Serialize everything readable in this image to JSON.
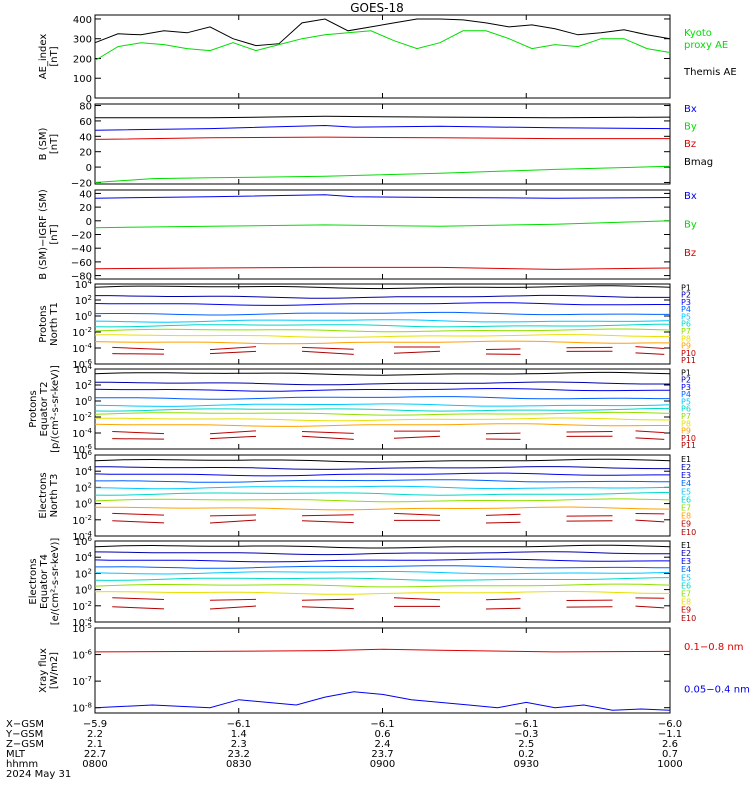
{
  "title": "GOES-18",
  "colors": {
    "black": "#000000",
    "blue": "#0000ee",
    "green": "#00dd00",
    "red": "#dd0000",
    "navy": "#0000aa",
    "mid_blue": "#0060ff",
    "cyan": "#00c8ff",
    "teal": "#00d8c8",
    "lime": "#90e000",
    "yellow": "#e8e000",
    "orange": "#ffa000",
    "dark_orange": "#f06000",
    "brick": "#c00000",
    "dark_red": "#b00000"
  },
  "chart_data": [
    {
      "type": "line",
      "ylabel": "AE_index\n[nT]",
      "ylim": [
        0,
        420
      ],
      "scale": "linear",
      "yticks": [
        {
          "v": 0,
          "t": "0"
        },
        {
          "v": 100,
          "t": "100"
        },
        {
          "v": 200,
          "t": "200"
        },
        {
          "v": 300,
          "t": "300"
        },
        {
          "v": 400,
          "t": "400"
        }
      ],
      "legend": [
        {
          "label": "Kyoto\nproxy AE",
          "color": "green",
          "frac": 0.25
        },
        {
          "label": "Themis AE",
          "color": "black",
          "frac": 0.72
        }
      ],
      "series": [
        {
          "name": "Themis AE",
          "color": "black",
          "x": [
            0,
            0.04,
            0.08,
            0.12,
            0.16,
            0.2,
            0.24,
            0.28,
            0.32,
            0.36,
            0.4,
            0.44,
            0.48,
            0.52,
            0.56,
            0.6,
            0.64,
            0.68,
            0.72,
            0.76,
            0.8,
            0.84,
            0.88,
            0.92,
            0.96,
            1.0
          ],
          "y": [
            280,
            325,
            320,
            340,
            330,
            360,
            300,
            265,
            275,
            380,
            400,
            340,
            360,
            380,
            400,
            400,
            395,
            380,
            360,
            370,
            350,
            320,
            330,
            345,
            320,
            300
          ]
        },
        {
          "name": "Kyoto proxy AE",
          "color": "green",
          "x": [
            0,
            0.04,
            0.08,
            0.12,
            0.16,
            0.2,
            0.24,
            0.28,
            0.32,
            0.36,
            0.4,
            0.44,
            0.48,
            0.52,
            0.56,
            0.6,
            0.64,
            0.68,
            0.72,
            0.76,
            0.8,
            0.84,
            0.88,
            0.92,
            0.96,
            1.0
          ],
          "y": [
            190,
            260,
            280,
            270,
            250,
            240,
            280,
            240,
            270,
            300,
            320,
            330,
            340,
            290,
            250,
            280,
            340,
            340,
            300,
            250,
            270,
            260,
            300,
            300,
            250,
            230
          ]
        }
      ]
    },
    {
      "type": "line",
      "ylabel": "B (SM)\n[nT]",
      "ylim": [
        -22,
        82
      ],
      "scale": "linear",
      "yticks": [
        {
          "v": -20,
          "t": "−20"
        },
        {
          "v": 0,
          "t": "0"
        },
        {
          "v": 20,
          "t": "20"
        },
        {
          "v": 40,
          "t": "40"
        },
        {
          "v": 60,
          "t": "60"
        },
        {
          "v": 80,
          "t": "80"
        }
      ],
      "legend": [
        {
          "label": "Bx",
          "color": "blue",
          "frac": 0.1
        },
        {
          "label": "By",
          "color": "green",
          "frac": 0.32
        },
        {
          "label": "Bz",
          "color": "red",
          "frac": 0.54
        },
        {
          "label": "Bmag",
          "color": "black",
          "frac": 0.76
        }
      ],
      "series": [
        {
          "name": "Bmag",
          "color": "black",
          "x": [
            0,
            0.2,
            0.4,
            0.6,
            0.8,
            1.0
          ],
          "y": [
            64,
            64,
            66,
            65,
            64,
            65
          ]
        },
        {
          "name": "Bx",
          "color": "blue",
          "x": [
            0,
            0.2,
            0.4,
            0.45,
            0.6,
            0.8,
            1.0
          ],
          "y": [
            48,
            50,
            54,
            52,
            53,
            51,
            50
          ]
        },
        {
          "name": "Bz",
          "color": "red",
          "x": [
            0,
            0.2,
            0.4,
            0.6,
            0.8,
            1.0
          ],
          "y": [
            36,
            38,
            39,
            38,
            37,
            37
          ]
        },
        {
          "name": "By",
          "color": "green",
          "x": [
            0,
            0.1,
            0.2,
            0.4,
            0.6,
            0.8,
            1.0
          ],
          "y": [
            -20,
            -15,
            -14,
            -12,
            -8,
            -3,
            1
          ]
        }
      ]
    },
    {
      "type": "line",
      "ylabel": "B (SM)−IGRF (SM)\n[nT]",
      "ylim": [
        -85,
        45
      ],
      "scale": "linear",
      "yticks": [
        {
          "v": -80,
          "t": "−80"
        },
        {
          "v": -60,
          "t": "−60"
        },
        {
          "v": -40,
          "t": "−40"
        },
        {
          "v": -20,
          "t": "−20"
        },
        {
          "v": 0,
          "t": "0"
        },
        {
          "v": 20,
          "t": "20"
        },
        {
          "v": 40,
          "t": "40"
        }
      ],
      "legend": [
        {
          "label": "Bx",
          "color": "blue",
          "frac": 0.1
        },
        {
          "label": "By",
          "color": "green",
          "frac": 0.42
        },
        {
          "label": "Bz",
          "color": "red",
          "frac": 0.74
        }
      ],
      "series": [
        {
          "name": "Bx",
          "color": "blue",
          "x": [
            0,
            0.2,
            0.4,
            0.45,
            0.6,
            0.8,
            1.0
          ],
          "y": [
            33,
            35,
            38,
            35,
            34,
            33,
            34
          ]
        },
        {
          "name": "By",
          "color": "green",
          "x": [
            0,
            0.2,
            0.4,
            0.6,
            0.8,
            1.0
          ],
          "y": [
            -10,
            -8,
            -6,
            -8,
            -5,
            0
          ]
        },
        {
          "name": "Bz",
          "color": "red",
          "x": [
            0,
            0.2,
            0.4,
            0.6,
            0.8,
            1.0
          ],
          "y": [
            -70,
            -69,
            -68,
            -68,
            -71,
            -69
          ]
        }
      ]
    },
    {
      "type": "line",
      "ylabel": "Protons\nNorth T1",
      "ylim": [
        -6,
        4
      ],
      "scale": "log10",
      "yticks": [
        {
          "v": 4,
          "t": "10^4"
        },
        {
          "v": 2,
          "t": "10^2"
        },
        {
          "v": 0,
          "t": "10^0"
        },
        {
          "v": -2,
          "t": "10^-2"
        },
        {
          "v": -4,
          "t": "10^-4"
        },
        {
          "v": -6,
          "t": "10^-6"
        }
      ],
      "legend_small": [
        {
          "label": "P1",
          "color": "black"
        },
        {
          "label": "P2",
          "color": "navy"
        },
        {
          "label": "P3",
          "color": "blue"
        },
        {
          "label": "P4",
          "color": "mid_blue"
        },
        {
          "label": "P5",
          "color": "cyan"
        },
        {
          "label": "P6",
          "color": "teal"
        },
        {
          "label": "P7",
          "color": "lime"
        },
        {
          "label": "P8",
          "color": "yellow"
        },
        {
          "label": "P9",
          "color": "orange"
        },
        {
          "label": "P10",
          "color": "brick"
        },
        {
          "label": "P11",
          "color": "dark_red"
        }
      ],
      "levels": [
        3.6,
        2.4,
        1.5,
        0.3,
        -0.6,
        -1.2,
        -1.8,
        -2.5,
        -3.3,
        -4.0,
        -4.6
      ],
      "gaps": [
        9,
        10
      ]
    },
    {
      "type": "line",
      "ylabel": "Protons\nEquator T2\n[p/(cm²-s-sr-keV)]",
      "ylim": [
        -6,
        4
      ],
      "scale": "log10",
      "yticks": [
        {
          "v": 4,
          "t": "10^4"
        },
        {
          "v": 2,
          "t": "10^2"
        },
        {
          "v": 0,
          "t": "10^0"
        },
        {
          "v": -2,
          "t": "10^-2"
        },
        {
          "v": -4,
          "t": "10^-4"
        },
        {
          "v": -6,
          "t": "10^-6"
        }
      ],
      "legend_small": [
        {
          "label": "P1",
          "color": "black"
        },
        {
          "label": "P2",
          "color": "navy"
        },
        {
          "label": "P3",
          "color": "blue"
        },
        {
          "label": "P4",
          "color": "mid_blue"
        },
        {
          "label": "P5",
          "color": "cyan"
        },
        {
          "label": "P6",
          "color": "teal"
        },
        {
          "label": "P7",
          "color": "lime"
        },
        {
          "label": "P8",
          "color": "yellow"
        },
        {
          "label": "P9",
          "color": "orange"
        },
        {
          "label": "P10",
          "color": "brick"
        },
        {
          "label": "P11",
          "color": "dark_red"
        }
      ],
      "levels": [
        3.4,
        2.2,
        1.4,
        0.4,
        -0.5,
        -1.1,
        -1.6,
        -2.3,
        -3.0,
        -3.9,
        -4.6
      ],
      "gaps": [
        9,
        10
      ]
    },
    {
      "type": "line",
      "ylabel": "Electrons\nNorth T3",
      "ylim": [
        -4,
        6
      ],
      "scale": "log10",
      "yticks": [
        {
          "v": 6,
          "t": "10^6"
        },
        {
          "v": 4,
          "t": "10^4"
        },
        {
          "v": 2,
          "t": "10^2"
        },
        {
          "v": 0,
          "t": "10^0"
        },
        {
          "v": -2,
          "t": "10^-2"
        },
        {
          "v": -4,
          "t": "10^-4"
        }
      ],
      "legend_small": [
        {
          "label": "E1",
          "color": "black"
        },
        {
          "label": "E2",
          "color": "navy"
        },
        {
          "label": "E3",
          "color": "blue"
        },
        {
          "label": "E4",
          "color": "mid_blue"
        },
        {
          "label": "E5",
          "color": "cyan"
        },
        {
          "label": "E6",
          "color": "teal"
        },
        {
          "label": "E7",
          "color": "lime"
        },
        {
          "label": "E8",
          "color": "orange"
        },
        {
          "label": "E9",
          "color": "brick"
        },
        {
          "label": "E10",
          "color": "dark_red"
        }
      ],
      "levels": [
        5.3,
        4.4,
        3.6,
        2.8,
        2.0,
        1.2,
        0.4,
        -0.6,
        -1.4,
        -2.2
      ],
      "gaps": [
        8,
        9
      ]
    },
    {
      "type": "line",
      "ylabel": "Electrons\nEquator T4\n[e/(cm²-s-sr-keV)]",
      "ylim": [
        -4,
        6
      ],
      "scale": "log10",
      "yticks": [
        {
          "v": 6,
          "t": "10^6"
        },
        {
          "v": 4,
          "t": "10^4"
        },
        {
          "v": 2,
          "t": "10^2"
        },
        {
          "v": 0,
          "t": "10^0"
        },
        {
          "v": -2,
          "t": "10^-2"
        },
        {
          "v": -4,
          "t": "10^-4"
        }
      ],
      "legend_small": [
        {
          "label": "E1",
          "color": "black"
        },
        {
          "label": "E2",
          "color": "navy"
        },
        {
          "label": "E3",
          "color": "blue"
        },
        {
          "label": "E4",
          "color": "mid_blue"
        },
        {
          "label": "E5",
          "color": "cyan"
        },
        {
          "label": "E6",
          "color": "teal"
        },
        {
          "label": "E7",
          "color": "lime"
        },
        {
          "label": "E8",
          "color": "yellow"
        },
        {
          "label": "E9",
          "color": "brick"
        },
        {
          "label": "E10",
          "color": "dark_red"
        }
      ],
      "levels": [
        5.3,
        4.5,
        3.6,
        2.8,
        2.1,
        1.3,
        0.5,
        -0.4,
        -1.2,
        -2.2
      ],
      "gaps": [
        8,
        9
      ]
    },
    {
      "type": "line",
      "ylabel": "Xray flux\n[W/m2]",
      "ylim": [
        -8.2,
        -5.0
      ],
      "scale": "log10",
      "yticks": [
        {
          "v": -5,
          "t": "10^-5"
        },
        {
          "v": -6,
          "t": "10^-6"
        },
        {
          "v": -7,
          "t": "10^-7"
        },
        {
          "v": -8,
          "t": "10^-8"
        }
      ],
      "legend": [
        {
          "label": "0.1−0.8 nm",
          "color": "red",
          "frac": 0.26
        },
        {
          "label": "0.05−0.4 nm",
          "color": "blue",
          "frac": 0.76
        }
      ],
      "series": [
        {
          "name": "0.1−0.8 nm",
          "color": "red",
          "x": [
            0,
            0.2,
            0.4,
            0.5,
            0.6,
            0.8,
            1.0
          ],
          "y": [
            -5.9,
            -5.88,
            -5.85,
            -5.8,
            -5.84,
            -5.9,
            -5.88
          ]
        },
        {
          "name": "0.05−0.4 nm",
          "color": "blue",
          "x": [
            0,
            0.1,
            0.2,
            0.25,
            0.3,
            0.35,
            0.4,
            0.45,
            0.5,
            0.55,
            0.6,
            0.65,
            0.7,
            0.75,
            0.8,
            0.85,
            0.9,
            0.95,
            1.0
          ],
          "y": [
            -8.0,
            -7.9,
            -8.0,
            -7.7,
            -7.8,
            -7.9,
            -7.6,
            -7.4,
            -7.5,
            -7.7,
            -7.8,
            -7.9,
            -8.0,
            -7.8,
            -8.0,
            -7.9,
            -8.1,
            -8.05,
            -8.1
          ]
        }
      ]
    }
  ],
  "x_axis": {
    "row_labels": [
      "X−GSM",
      "Y−GSM",
      "Z−GSM",
      "MLT",
      "hhmm",
      "2024 May 31"
    ],
    "columns": [
      {
        "frac": 0.0,
        "values": [
          "−5.9",
          "2.2",
          "2.1",
          "22.7",
          "0800"
        ]
      },
      {
        "frac": 0.25,
        "values": [
          "−6.1",
          "1.4",
          "2.3",
          "23.2",
          "0830"
        ]
      },
      {
        "frac": 0.5,
        "values": [
          "−6.1",
          "0.6",
          "2.4",
          "23.7",
          "0900"
        ]
      },
      {
        "frac": 0.75,
        "values": [
          "−6.1",
          "−0.3",
          "2.5",
          "0.2",
          "0930"
        ]
      },
      {
        "frac": 1.0,
        "values": [
          "−6.0",
          "−1.1",
          "2.6",
          "0.7",
          "1000"
        ]
      }
    ]
  }
}
